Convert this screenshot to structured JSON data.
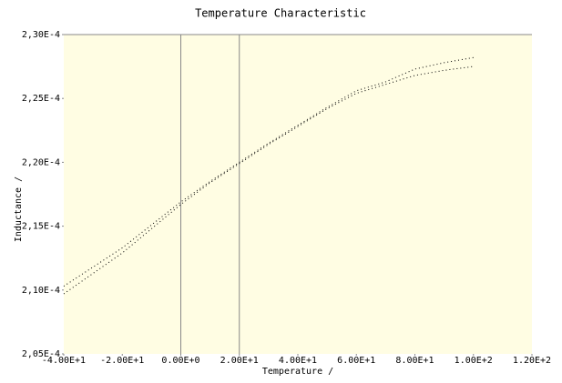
{
  "chart_data": {
    "type": "line",
    "title": "Temperature Characteristic",
    "x_label": "Temperature /",
    "y_label": "Inductance /",
    "x": [
      -40,
      -30,
      -20,
      -10,
      0,
      10,
      20,
      30,
      40,
      50,
      60,
      70,
      80,
      90,
      100
    ],
    "series": [
      {
        "color": "#000000",
        "values": [
          0.0002103,
          0.0002118,
          0.0002133,
          0.0002151,
          0.0002169,
          0.0002185,
          0.00022,
          0.0002215,
          0.0002229,
          0.0002243,
          0.0002256,
          0.0002263,
          0.0002273,
          0.0002278,
          0.0002282
        ]
      },
      {
        "color": "#000000",
        "values": [
          0.0002097,
          0.0002113,
          0.0002129,
          0.0002148,
          0.0002167,
          0.0002184,
          0.0002199,
          0.0002214,
          0.0002228,
          0.0002242,
          0.0002254,
          0.0002261,
          0.0002268,
          0.0002272,
          0.0002275
        ]
      }
    ],
    "xlim": [
      -40,
      120
    ],
    "xticks": [
      {
        "value": -40,
        "label": "-4.00E+1"
      },
      {
        "value": -20,
        "label": "-2.00E+1"
      },
      {
        "value": 0,
        "label": "0.00E+0"
      },
      {
        "value": 20,
        "label": "2.00E+1"
      },
      {
        "value": 40,
        "label": "4.00E+1"
      },
      {
        "value": 60,
        "label": "6.00E+1"
      },
      {
        "value": 80,
        "label": "8.00E+1"
      },
      {
        "value": 100,
        "label": "1.00E+2"
      },
      {
        "value": 120,
        "label": "1.20E+2"
      }
    ],
    "ylim": [
      0.000205,
      0.00023
    ],
    "yticks": [
      {
        "value": 0.000205,
        "label": "2,05E-4"
      },
      {
        "value": 0.00021,
        "label": "2,10E-4"
      },
      {
        "value": 0.000215,
        "label": "2,15E-4"
      },
      {
        "value": 0.00022,
        "label": "2,20E-4"
      },
      {
        "value": 0.000225,
        "label": "2,25E-4"
      },
      {
        "value": 0.00023,
        "label": "2,30E-4"
      }
    ],
    "vlines": [
      0,
      20
    ],
    "plot_background": "#fffde3"
  }
}
